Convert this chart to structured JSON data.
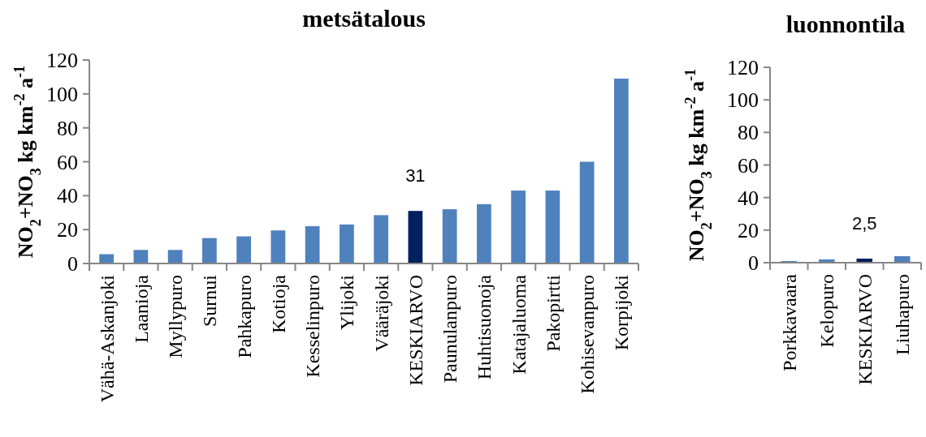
{
  "chart_data": [
    {
      "type": "bar",
      "title": "metsätalous",
      "ylabel": "NO$_{2}$+NO$_{3}$ kg km$^{-2}$ a$^{-1}$",
      "categories": [
        "Vähä-Askanjoki",
        "Laanioja",
        "Myllypuro",
        "Surnui",
        "Pahkapuro",
        "Kotioja",
        "Kesselinpuro",
        "Ylijoki",
        "Vääräjoki",
        "KESKIARVO",
        "Paunulanpuro",
        "Huhtisuonoja",
        "Katajaluoma",
        "Pakopirtti",
        "Kohisevanpuro",
        "Korpijoki"
      ],
      "values": [
        5.5,
        8,
        8,
        15,
        16,
        19.5,
        22,
        23,
        28.5,
        31,
        32,
        35,
        43,
        43,
        60,
        109
      ],
      "colors": [
        "#4f81bd",
        "#4f81bd",
        "#4f81bd",
        "#4f81bd",
        "#4f81bd",
        "#4f81bd",
        "#4f81bd",
        "#4f81bd",
        "#4f81bd",
        "#002060",
        "#4f81bd",
        "#4f81bd",
        "#4f81bd",
        "#4f81bd",
        "#4f81bd",
        "#4f81bd"
      ],
      "value_labels": [
        null,
        null,
        null,
        null,
        null,
        null,
        null,
        null,
        null,
        "31",
        null,
        null,
        null,
        null,
        null,
        null
      ],
      "ylim": [
        0,
        120
      ],
      "yticks": [
        0,
        20,
        40,
        60,
        80,
        100,
        120
      ],
      "grid": false
    },
    {
      "type": "bar",
      "title": "luonnontila",
      "ylabel": "NO$_{2}$+NO$_{3}$ kg km$^{-2}$ a$^{-1}$",
      "categories": [
        "Porkkavaara",
        "Kelopuro",
        "KESKIARVO",
        "Liuhapuro"
      ],
      "values": [
        1,
        2,
        2.5,
        4
      ],
      "colors": [
        "#4f81bd",
        "#4f81bd",
        "#002060",
        "#4f81bd"
      ],
      "value_labels": [
        null,
        null,
        "2,5",
        null
      ],
      "ylim": [
        0,
        120
      ],
      "yticks": [
        0,
        20,
        40,
        60,
        80,
        100,
        120
      ],
      "grid": false
    }
  ]
}
